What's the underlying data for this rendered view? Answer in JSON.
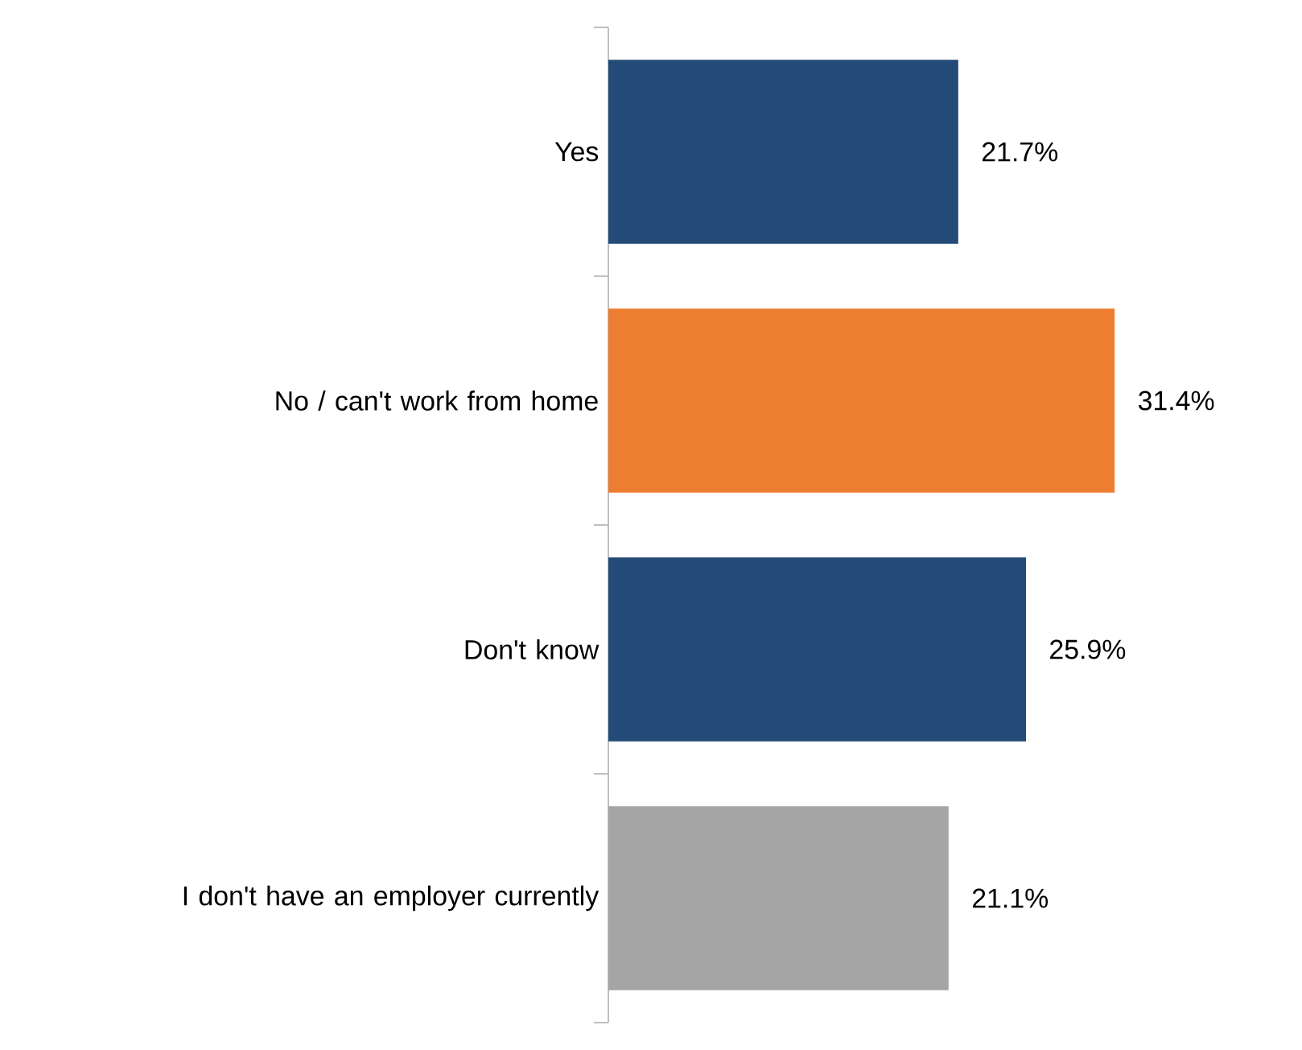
{
  "chart_data": {
    "type": "bar",
    "orientation": "horizontal",
    "categories": [
      "Yes",
      "No / can't work from home",
      "Don't know",
      "I don't have an employer currently"
    ],
    "values": [
      21.7,
      31.4,
      25.9,
      21.1
    ],
    "colors": [
      "#244b77",
      "#ed7d31",
      "#244b77",
      "#a5a5a5"
    ],
    "value_labels": [
      "21.7%",
      "31.4%",
      "25.9%",
      "21.1%"
    ]
  }
}
